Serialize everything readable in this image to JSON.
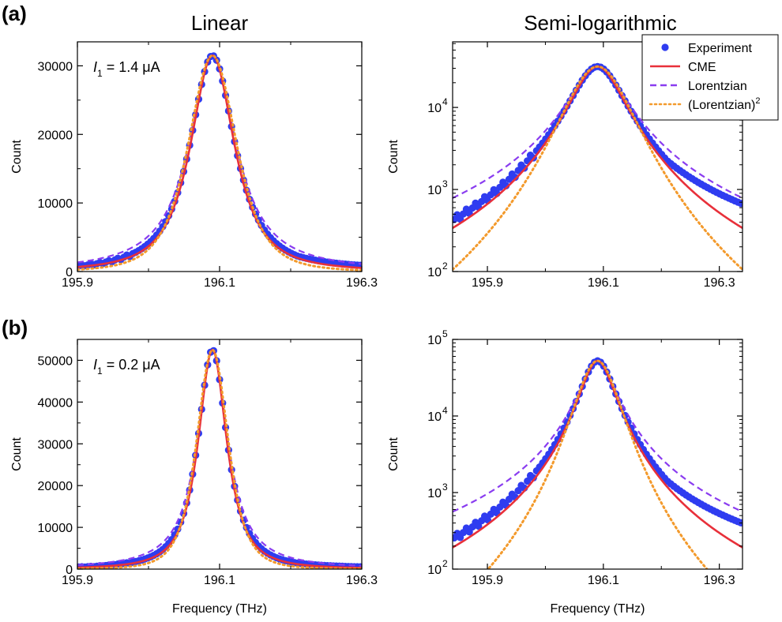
{
  "figure": {
    "col_titles": [
      "Linear",
      "Semi-logarithmic"
    ],
    "panel_labels": [
      "(a)",
      "(b)"
    ]
  },
  "legend": {
    "placement": "top-right",
    "entries": [
      {
        "label": "Experiment",
        "color": "#2f3cf0",
        "style": "dots"
      },
      {
        "label": "CME",
        "color": "#e8303a",
        "style": "solid"
      },
      {
        "label": "Lorentzian",
        "color": "#8a3cf0",
        "style": "dashed"
      },
      {
        "label": "(Lorentzian)",
        "sup": "2",
        "color": "#f39a2c",
        "style": "dotted"
      }
    ]
  },
  "chart_data": [
    {
      "id": "a-linear",
      "type": "line",
      "annotation": {
        "var": "I",
        "sub": "1",
        "text": " = 1.4 μA"
      },
      "xlabel": "",
      "ylabel": "Count",
      "yscale": "linear",
      "xlim": [
        195.9,
        196.3
      ],
      "ylim": [
        0,
        33500
      ],
      "xticks": [
        195.9,
        196.1,
        196.3
      ],
      "xticklabels": [
        "195.9",
        "196.1",
        "196.3"
      ],
      "yticks": [
        0,
        10000,
        20000,
        30000
      ],
      "yticklabels": [
        "0",
        "10000",
        "20000",
        "30000"
      ],
      "model": {
        "peak": 31500,
        "x0": 196.09,
        "gamma": 0.04,
        "base": 0
      }
    },
    {
      "id": "a-log",
      "type": "line",
      "xlabel": "",
      "ylabel": "Count",
      "yscale": "log",
      "xlim": [
        195.84,
        196.34
      ],
      "ylim": [
        100,
        63000
      ],
      "xticks": [
        195.9,
        196.1,
        196.3
      ],
      "xticklabels": [
        "195.9",
        "196.1",
        "196.3"
      ],
      "yticks": [
        100,
        1000,
        10000
      ],
      "yticklabels": [
        "10",
        "10",
        "10"
      ],
      "ytickexp": [
        "2",
        "3",
        "4"
      ],
      "model": {
        "peak": 31500,
        "x0": 196.09,
        "gamma": 0.04,
        "base": 0
      }
    },
    {
      "id": "b-linear",
      "type": "line",
      "annotation": {
        "var": "I",
        "sub": "1",
        "text": " = 0.2 μA"
      },
      "xlabel": "Frequency (THz)",
      "ylabel": "Count",
      "yscale": "linear",
      "xlim": [
        195.9,
        196.3
      ],
      "ylim": [
        0,
        55000
      ],
      "xticks": [
        195.9,
        196.1,
        196.3
      ],
      "xticklabels": [
        "195.9",
        "196.1",
        "196.3"
      ],
      "yticks": [
        0,
        10000,
        20000,
        30000,
        40000,
        50000
      ],
      "yticklabels": [
        "0",
        "10000",
        "20000",
        "30000",
        "40000",
        "50000"
      ],
      "model": {
        "peak": 52500,
        "x0": 196.09,
        "gamma": 0.026,
        "base": 0
      }
    },
    {
      "id": "b-log",
      "type": "line",
      "xlabel": "Frequency (THz)",
      "ylabel": "Count",
      "yscale": "log",
      "xlim": [
        195.84,
        196.34
      ],
      "ylim": [
        100,
        100000
      ],
      "xticks": [
        195.9,
        196.1,
        196.3
      ],
      "xticklabels": [
        "195.9",
        "196.1",
        "196.3"
      ],
      "yticks": [
        100,
        1000,
        10000,
        100000
      ],
      "yticklabels": [
        "10",
        "10",
        "10",
        "10"
      ],
      "ytickexp": [
        "2",
        "3",
        "4",
        "5"
      ],
      "model": {
        "peak": 52500,
        "x0": 196.09,
        "gamma": 0.026,
        "base": 0
      }
    }
  ]
}
